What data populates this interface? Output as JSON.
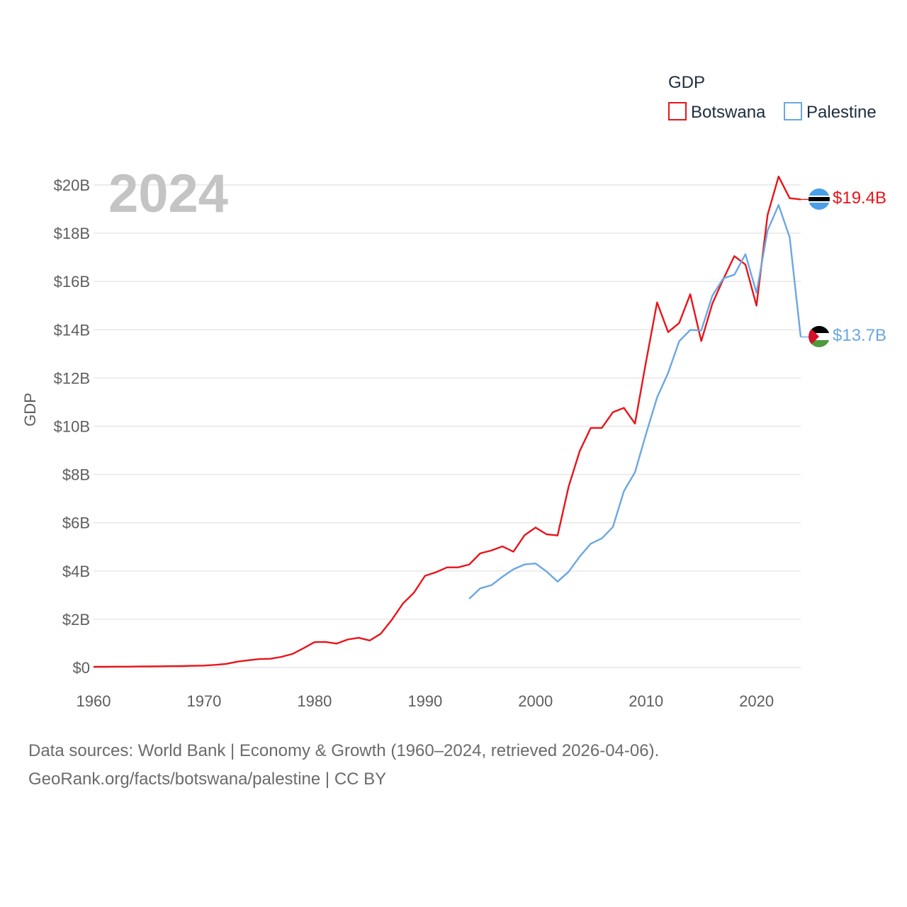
{
  "chart_data": {
    "type": "line",
    "year_label": "2024",
    "ylabel": "GDP",
    "legend": {
      "title": "GDP"
    },
    "xlim": [
      1960,
      2024
    ],
    "ylim": [
      0,
      20
    ],
    "x_ticks": [
      1960,
      1970,
      1980,
      1990,
      2000,
      2010,
      2020
    ],
    "y_ticks": [
      {
        "value": 0,
        "label": "$0"
      },
      {
        "value": 2,
        "label": "$2B"
      },
      {
        "value": 4,
        "label": "$4B"
      },
      {
        "value": 6,
        "label": "$6B"
      },
      {
        "value": 8,
        "label": "$8B"
      },
      {
        "value": 10,
        "label": "$10B"
      },
      {
        "value": 12,
        "label": "$12B"
      },
      {
        "value": 14,
        "label": "$14B"
      },
      {
        "value": 16,
        "label": "$16B"
      },
      {
        "value": 18,
        "label": "$18B"
      },
      {
        "value": 20,
        "label": "$20B"
      }
    ],
    "series": [
      {
        "name": "Botswana",
        "color": "#e8141a",
        "end_label": "$19.4B",
        "flag": "botswana-flag-icon",
        "x": [
          1960,
          1961,
          1962,
          1963,
          1964,
          1965,
          1966,
          1967,
          1968,
          1969,
          1970,
          1971,
          1972,
          1973,
          1974,
          1975,
          1976,
          1977,
          1978,
          1979,
          1980,
          1981,
          1982,
          1983,
          1984,
          1985,
          1986,
          1987,
          1988,
          1989,
          1990,
          1991,
          1992,
          1993,
          1994,
          1995,
          1996,
          1997,
          1998,
          1999,
          2000,
          2001,
          2002,
          2003,
          2004,
          2005,
          2006,
          2007,
          2008,
          2009,
          2010,
          2011,
          2012,
          2013,
          2014,
          2015,
          2016,
          2017,
          2018,
          2019,
          2020,
          2021,
          2022,
          2023,
          2024
        ],
        "values": [
          0.03,
          0.03,
          0.035,
          0.035,
          0.04,
          0.045,
          0.05,
          0.055,
          0.06,
          0.07,
          0.08,
          0.11,
          0.15,
          0.24,
          0.3,
          0.35,
          0.36,
          0.44,
          0.56,
          0.8,
          1.05,
          1.06,
          0.99,
          1.16,
          1.23,
          1.12,
          1.4,
          1.98,
          2.65,
          3.1,
          3.8,
          3.95,
          4.15,
          4.15,
          4.27,
          4.73,
          4.85,
          5.02,
          4.8,
          5.48,
          5.8,
          5.52,
          5.47,
          7.5,
          8.97,
          9.93,
          9.93,
          10.58,
          10.76,
          10.11,
          12.67,
          15.13,
          13.9,
          14.28,
          15.47,
          13.53,
          15.08,
          16.1,
          17.05,
          16.7,
          15.0,
          18.75,
          20.35,
          19.45,
          19.4
        ]
      },
      {
        "name": "Palestine",
        "color": "#6ba7e2",
        "end_label": "$13.7B",
        "flag": "palestine-flag-icon",
        "x": [
          1994,
          1995,
          1996,
          1997,
          1998,
          1999,
          2000,
          2001,
          2002,
          2003,
          2004,
          2005,
          2006,
          2007,
          2008,
          2009,
          2010,
          2011,
          2012,
          2013,
          2014,
          2015,
          2016,
          2017,
          2018,
          2019,
          2020,
          2021,
          2022,
          2023,
          2024
        ],
        "values": [
          2.85,
          3.28,
          3.41,
          3.76,
          4.07,
          4.27,
          4.31,
          3.98,
          3.56,
          3.97,
          4.6,
          5.13,
          5.35,
          5.82,
          7.31,
          8.09,
          9.68,
          11.19,
          12.21,
          13.52,
          13.99,
          13.97,
          15.41,
          16.13,
          16.28,
          17.13,
          15.53,
          18.11,
          19.17,
          17.83,
          13.7
        ]
      }
    ],
    "source_line1": "Data sources: World Bank | Economy & Growth (1960–2024, retrieved 2026-04-06).",
    "source_line2": "GeoRank.org/facts/botswana/palestine | CC BY"
  }
}
